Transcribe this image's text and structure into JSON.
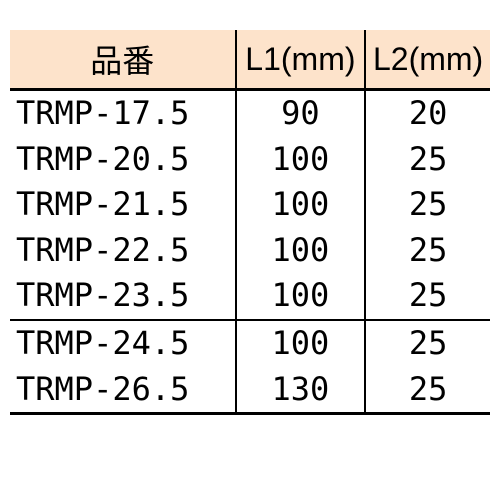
{
  "table": {
    "type": "table",
    "header_bg": "#fde3cb",
    "border_color": "#000000",
    "columns": [
      {
        "label": "品番",
        "align": "center",
        "width_pct": 47
      },
      {
        "label": "L1(mm)",
        "align": "center",
        "width_pct": 27
      },
      {
        "label": "L2(mm)",
        "align": "center",
        "width_pct": 26
      }
    ],
    "rows": [
      {
        "partno": "TRMP-17.5",
        "l1": "90",
        "l2": "20",
        "section_start": false
      },
      {
        "partno": "TRMP-20.5",
        "l1": "100",
        "l2": "25",
        "section_start": false
      },
      {
        "partno": "TRMP-21.5",
        "l1": "100",
        "l2": "25",
        "section_start": false
      },
      {
        "partno": "TRMP-22.5",
        "l1": "100",
        "l2": "25",
        "section_start": false
      },
      {
        "partno": "TRMP-23.5",
        "l1": "100",
        "l2": "25",
        "section_start": false
      },
      {
        "partno": "TRMP-24.5",
        "l1": "100",
        "l2": "25",
        "section_start": true
      },
      {
        "partno": "TRMP-26.5",
        "l1": "130",
        "l2": "25",
        "section_start": false
      }
    ],
    "font_size": 32,
    "text_color": "#000000"
  }
}
